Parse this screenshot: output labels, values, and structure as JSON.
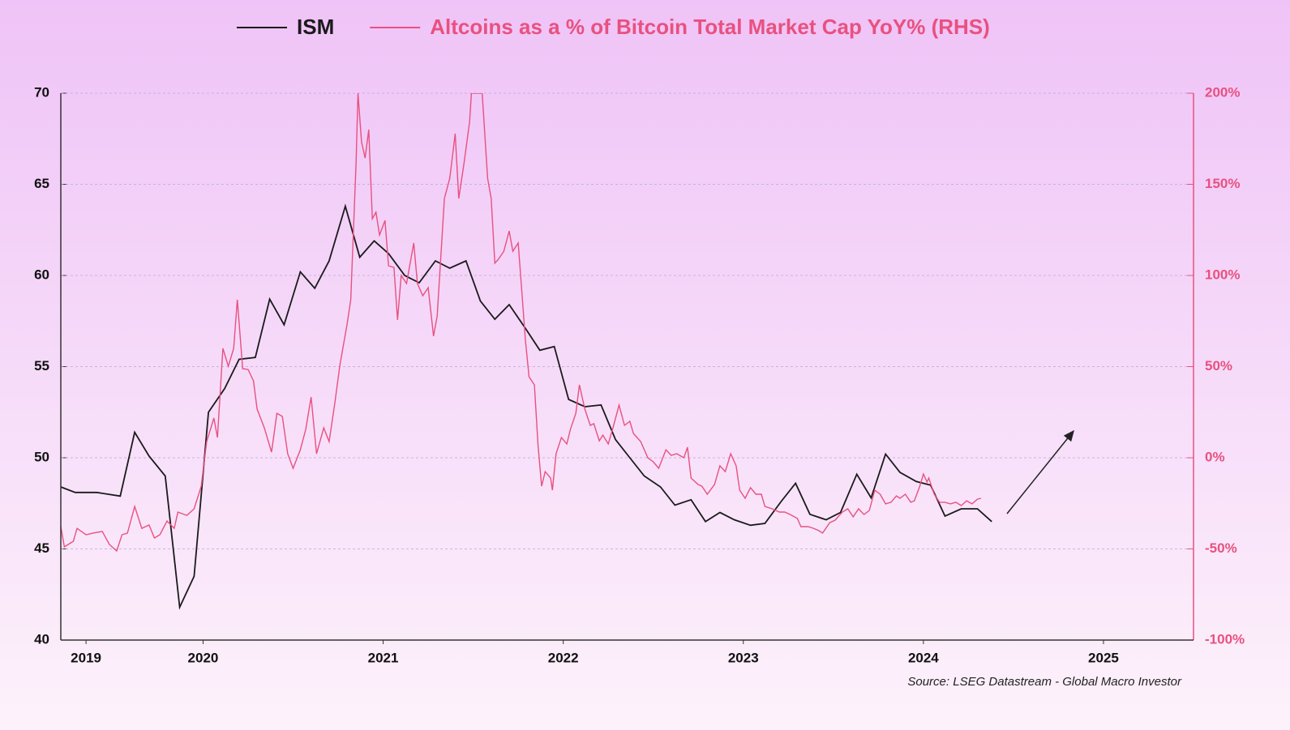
{
  "chart_data": {
    "type": "line",
    "source": "Source: LSEG Datastream - Global Macro Investor",
    "xlim": [
      2019.71,
      2026
    ],
    "xticks": [
      {
        "value": 2019.85,
        "label": "2019"
      },
      {
        "value": 2020.5,
        "label": "2020"
      },
      {
        "value": 2021.5,
        "label": "2021"
      },
      {
        "value": 2022.5,
        "label": "2022"
      },
      {
        "value": 2023.5,
        "label": "2023"
      },
      {
        "value": 2024.5,
        "label": "2024"
      },
      {
        "value": 2025.5,
        "label": "2025"
      }
    ],
    "ylim": [
      40,
      70
    ],
    "yticks": [
      40,
      45,
      50,
      55,
      60,
      65,
      70
    ],
    "y2lim": [
      -100,
      200
    ],
    "y2ticks": [
      {
        "value": -100,
        "label": "-100%"
      },
      {
        "value": -50,
        "label": "-50%"
      },
      {
        "value": 0,
        "label": "0%"
      },
      {
        "value": 50,
        "label": "50%"
      },
      {
        "value": 100,
        "label": "100%"
      },
      {
        "value": 150,
        "label": "150%"
      },
      {
        "value": 200,
        "label": "200%"
      }
    ],
    "grid": true,
    "series": [
      {
        "name": "ISM",
        "color": "#1a1a1a",
        "x": [
          2019.71,
          2019.79,
          2019.91,
          2020.04,
          2020.12,
          2020.2,
          2020.29,
          2020.37,
          2020.45,
          2020.53,
          2020.62,
          2020.7,
          2020.79,
          2020.87,
          2020.95,
          2021.04,
          2021.12,
          2021.2,
          2021.29,
          2021.37,
          2021.45,
          2021.53,
          2021.62,
          2021.7,
          2021.79,
          2021.87,
          2021.96,
          2022.04,
          2022.12,
          2022.2,
          2022.29,
          2022.37,
          2022.45,
          2022.53,
          2022.62,
          2022.71,
          2022.79,
          2022.87,
          2022.95,
          2023.04,
          2023.12,
          2023.21,
          2023.29,
          2023.37,
          2023.45,
          2023.54,
          2023.62,
          2023.71,
          2023.79,
          2023.87,
          2023.96,
          2024.04,
          2024.13,
          2024.21,
          2024.29,
          2024.37,
          2024.46,
          2024.54,
          2024.62,
          2024.71,
          2024.8,
          2024.88
        ],
        "values": [
          48.4,
          48.1,
          48.1,
          47.9,
          51.4,
          50.1,
          49.0,
          41.8,
          43.5,
          52.5,
          53.8,
          55.4,
          55.5,
          58.7,
          57.3,
          60.2,
          59.3,
          60.8,
          63.8,
          61.0,
          61.9,
          61.2,
          60.0,
          59.6,
          60.8,
          60.4,
          60.8,
          58.6,
          57.6,
          58.4,
          57.1,
          55.9,
          56.1,
          53.2,
          52.8,
          52.9,
          51.0,
          50.0,
          49.0,
          48.4,
          47.4,
          47.7,
          46.5,
          47.0,
          46.6,
          46.3,
          46.4,
          47.6,
          48.6,
          46.9,
          46.6,
          47.0,
          49.1,
          47.8,
          50.2,
          49.2,
          48.7,
          48.5,
          46.8,
          47.2,
          47.2,
          46.5
        ]
      },
      {
        "name": "Altcoins as a % of Bitcoin Total Market Cap YoY% (RHS)",
        "color": "#e8517f",
        "axis": "y2",
        "x": [
          2019.71,
          2019.73,
          2019.78,
          2019.8,
          2019.85,
          2019.89,
          2019.94,
          2019.98,
          2020.02,
          2020.05,
          2020.08,
          2020.12,
          2020.16,
          2020.2,
          2020.23,
          2020.26,
          2020.3,
          2020.34,
          2020.36,
          2020.41,
          2020.45,
          2020.49,
          2020.52,
          2020.56,
          2020.58,
          2020.61,
          2020.64,
          2020.67,
          2020.69,
          2020.72,
          2020.75,
          2020.78,
          2020.8,
          2020.84,
          2020.88,
          2020.91,
          2020.94,
          2020.97,
          2021.0,
          2021.04,
          2021.07,
          2021.1,
          2021.13,
          2021.17,
          2021.2,
          2021.23,
          2021.26,
          2021.3,
          2021.32,
          2021.35,
          2021.36,
          2021.38,
          2021.4,
          2021.42,
          2021.44,
          2021.46,
          2021.48,
          2021.51,
          2021.53,
          2021.56,
          2021.58,
          2021.6,
          2021.63,
          2021.67,
          2021.69,
          2021.72,
          2021.75,
          2021.78,
          2021.8,
          2021.84,
          2021.87,
          2021.9,
          2021.92,
          2021.95,
          2021.98,
          2021.99,
          2022.05,
          2022.08,
          2022.1,
          2022.12,
          2022.14,
          2022.17,
          2022.2,
          2022.22,
          2022.25,
          2022.27,
          2022.29,
          2022.31,
          2022.34,
          2022.36,
          2022.38,
          2022.4,
          2022.43,
          2022.44,
          2022.46,
          2022.49,
          2022.52,
          2022.54,
          2022.57,
          2022.59,
          2022.62,
          2022.65,
          2022.67,
          2022.7,
          2022.72,
          2022.75,
          2022.78,
          2022.81,
          2022.84,
          2022.87,
          2022.89,
          2022.93,
          2022.97,
          2023.0,
          2023.03,
          2023.07,
          2023.1,
          2023.13,
          2023.17,
          2023.19,
          2023.21,
          2023.25,
          2023.27,
          2023.3,
          2023.34,
          2023.37,
          2023.4,
          2023.43,
          2023.46,
          2023.48,
          2023.51,
          2023.54,
          2023.57,
          2023.6,
          2023.62,
          2023.66,
          2023.7,
          2023.73,
          2023.76,
          2023.8,
          2023.82,
          2023.86,
          2023.89,
          2023.92,
          2023.94,
          2023.98,
          2024.01,
          2024.05,
          2024.08,
          2024.11,
          2024.14,
          2024.17,
          2024.2,
          2024.23,
          2024.26,
          2024.29,
          2024.32,
          2024.35,
          2024.37,
          2024.4,
          2024.43,
          2024.45,
          2024.48,
          2024.5,
          2024.52,
          2024.53,
          2024.56,
          2024.59,
          2024.62,
          2024.65,
          2024.68,
          2024.71,
          2024.74,
          2024.77,
          2024.8,
          2024.82
        ],
        "values": [
          -37.8,
          -48.9,
          -45.8,
          -38.7,
          -42.2,
          -41.3,
          -40.4,
          -47.6,
          -51.1,
          -42.2,
          -41.3,
          -26.7,
          -38.7,
          -36.9,
          -44.0,
          -42.2,
          -34.7,
          -38.7,
          -29.8,
          -31.6,
          -28.0,
          -15.6,
          8.9,
          21.8,
          11.1,
          60.0,
          50.2,
          60.0,
          86.7,
          48.9,
          48.4,
          42.2,
          26.7,
          16.4,
          3.1,
          24.4,
          22.7,
          2.2,
          -5.8,
          4.4,
          15.6,
          33.3,
          2.2,
          16.4,
          8.9,
          28.9,
          51.1,
          73.3,
          86.7,
          162.2,
          200,
          173.3,
          164.4,
          180,
          131.1,
          134.7,
          122.2,
          130.2,
          105.3,
          104.4,
          75.6,
          100,
          95.6,
          117.8,
          95.6,
          88.9,
          93.3,
          66.7,
          77.8,
          142.2,
          153.3,
          177.8,
          142.2,
          162.2,
          184.4,
          200,
          200,
          153.3,
          142.2,
          106.7,
          108.9,
          113.3,
          124.4,
          113.3,
          117.8,
          91.1,
          64.4,
          44.4,
          40.0,
          6.7,
          -15.6,
          -7.6,
          -11.1,
          -17.8,
          2.2,
          11.1,
          7.6,
          15.6,
          24.4,
          40.0,
          26.7,
          17.8,
          18.7,
          9.3,
          12.4,
          7.6,
          17.8,
          28.9,
          17.8,
          20.0,
          13.3,
          8.9,
          0,
          -2.2,
          -5.8,
          4.4,
          1.3,
          2.2,
          0,
          5.8,
          -11.1,
          -14.7,
          -15.6,
          -20.0,
          -14.7,
          -4.4,
          -7.6,
          2.2,
          -4.4,
          -17.8,
          -22.2,
          -16.4,
          -20.0,
          -20.0,
          -26.7,
          -28.0,
          -29.8,
          -29.8,
          -31.1,
          -33.3,
          -37.8,
          -37.8,
          -38.7,
          -40.0,
          -41.3,
          -35.6,
          -34.2,
          -29.8,
          -28.0,
          -32.4,
          -28.0,
          -31.1,
          -28.9,
          -17.8,
          -20.0,
          -25.3,
          -24.4,
          -20.9,
          -22.2,
          -20.0,
          -24.4,
          -23.6,
          -15.6,
          -8.9,
          -13.3,
          -11.1,
          -20.0,
          -24.4,
          -24.4,
          -25.3,
          -24.4,
          -26.2,
          -23.6,
          -25.3,
          -22.7,
          -22.2
        ]
      }
    ]
  }
}
